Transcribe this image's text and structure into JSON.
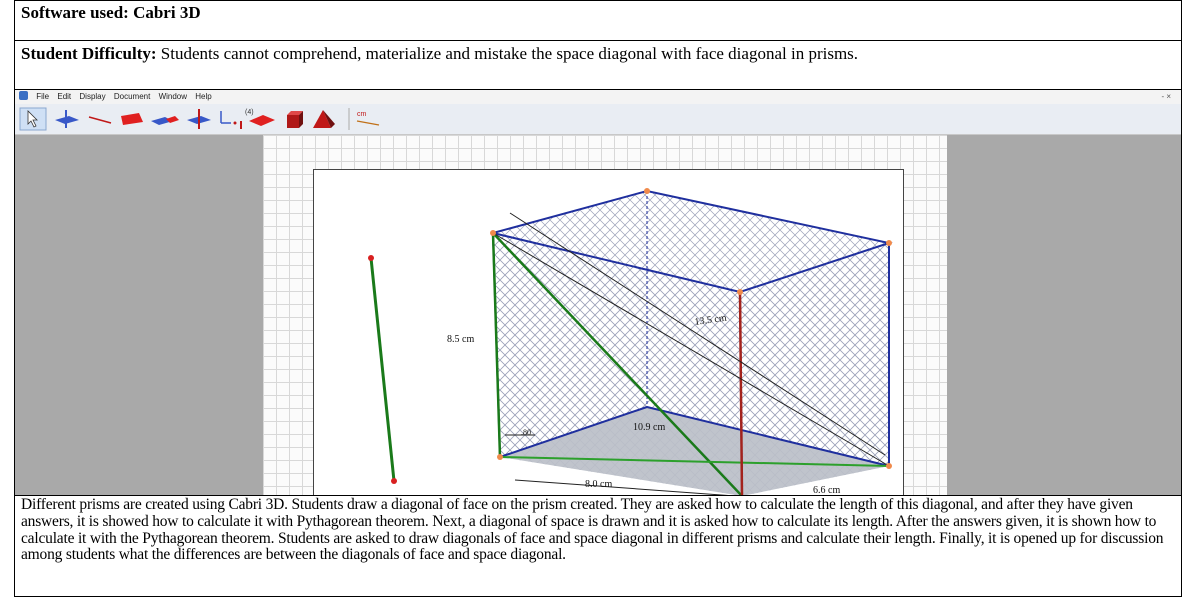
{
  "row1": {
    "label": "Software used:",
    "value": "Cabri 3D"
  },
  "row2": {
    "label": "Student Difficulty:",
    "text": "Students cannot comprehend, materialize and mistake the space diagonal with face diagonal in prisms."
  },
  "app": {
    "menu": [
      "File",
      "Edit",
      "Display",
      "Document",
      "Window",
      "Help"
    ],
    "window_controls": "- ×",
    "toolbar": [
      "pointer-tool",
      "plane-tool",
      "line-tool",
      "polygon-tool",
      "surface-tool",
      "perpendicular-tool",
      "transformation-tool",
      "regular-polygon-tool",
      "polyhedron-tool",
      "pyramid-tool",
      "measurement-tool"
    ],
    "toolbar_marks": {
      "numeric": "(4)",
      "measure": "cm"
    },
    "labels": {
      "height": "8.5 cm",
      "space_diagonal": "13.5 cm",
      "base_diagonal": "10.9 cm",
      "side1": "8.0 cm",
      "side2": "6.6 cm",
      "small": ".80"
    },
    "colors": {
      "canvas_bg": "#a9a9a9",
      "prism_edges": "#1f2f9e",
      "face_diagonal": "#1a7a1a",
      "space_diagonal": "#a3221c",
      "base": "#b9bec6",
      "vertex": "#f08a4b"
    }
  },
  "row4": {
    "text": "Different prisms are created using Cabri 3D. Students draw a diagonal of face on the prism created. They are asked how to calculate the length of this diagonal, and after they have given answers, it is showed how to calculate it with Pythagorean theorem. Next, a diagonal of space is drawn and it is asked how to calculate its length. After the answers given, it is shown how to calculate it with the Pythagorean theorem. Students are asked to draw diagonals of face and space diagonal in different prisms and calculate their length. Finally, it is opened up for discussion among students what the differences are between the diagonals of face and space diagonal."
  }
}
